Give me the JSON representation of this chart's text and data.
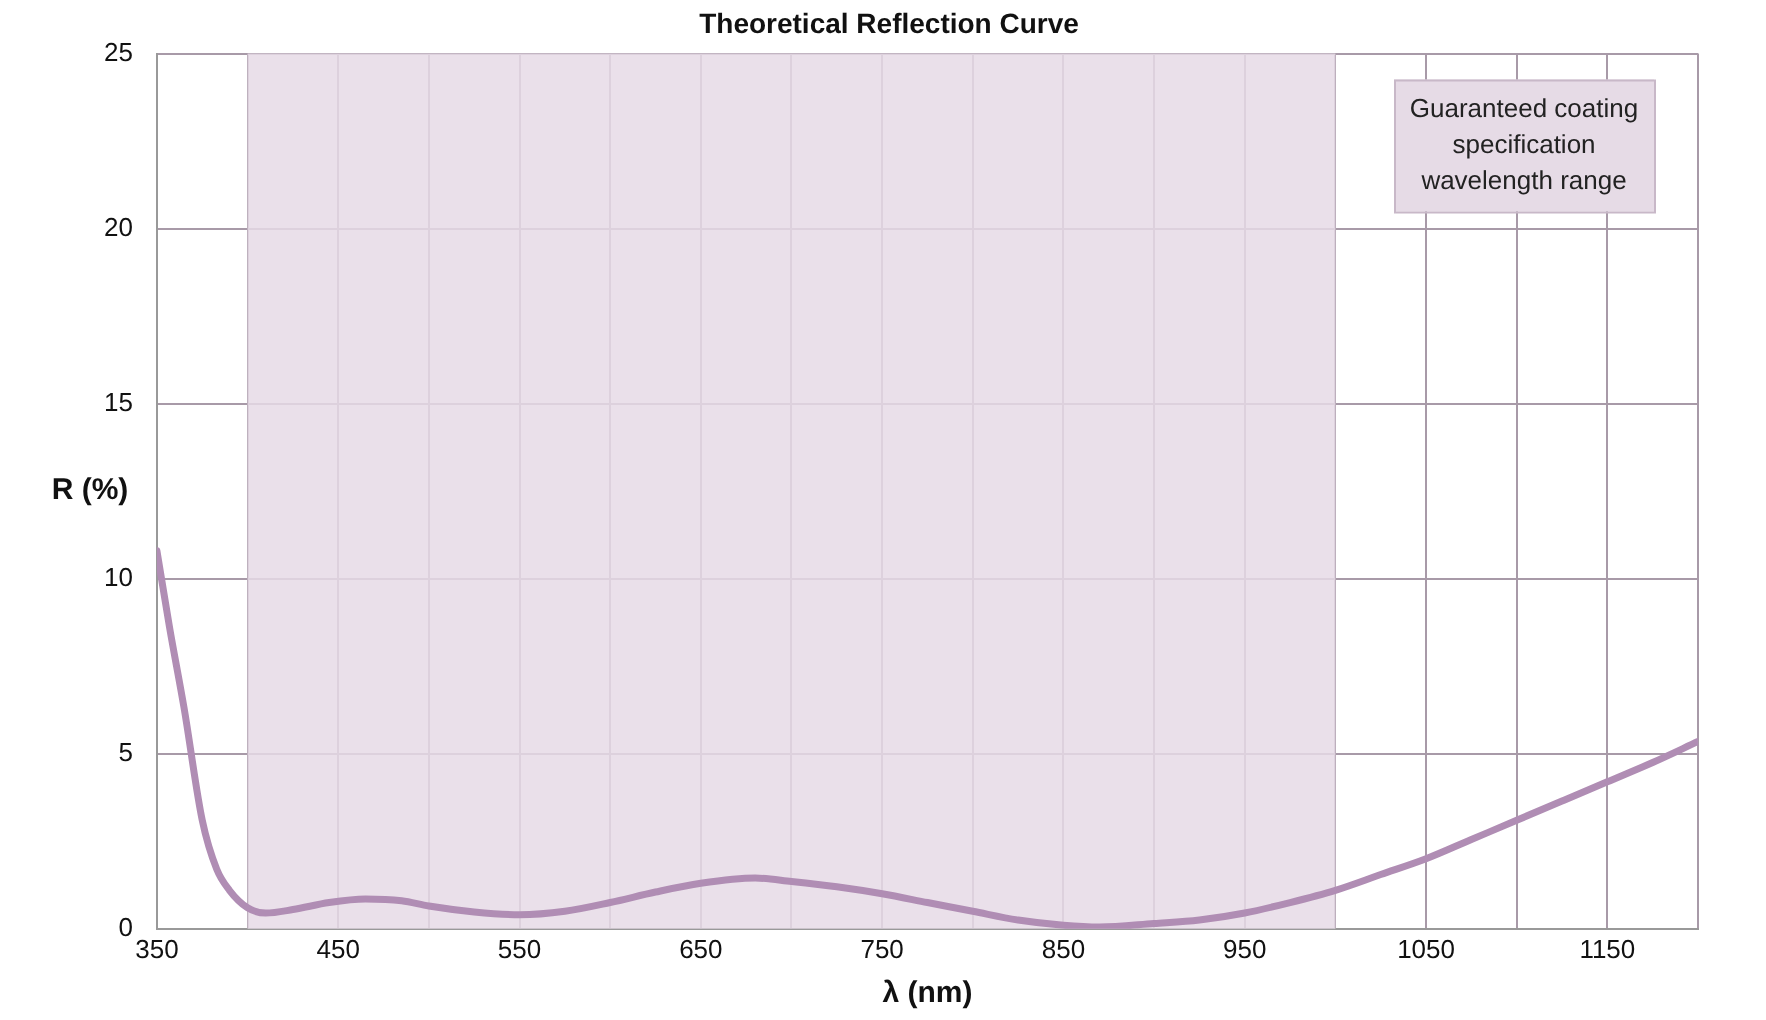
{
  "chart_data": {
    "type": "line",
    "title": "Theoretical Reflection Curve",
    "xlabel": "λ (nm)",
    "ylabel": "R (%)",
    "x": [
      350,
      357,
      365,
      375,
      383,
      390,
      400,
      410,
      425,
      445,
      465,
      485,
      500,
      525,
      550,
      575,
      600,
      625,
      650,
      680,
      700,
      725,
      750,
      775,
      800,
      825,
      850,
      870,
      900,
      925,
      950,
      975,
      1000,
      1025,
      1050,
      1075,
      1100,
      1125,
      1150,
      1175,
      1200
    ],
    "series": [
      {
        "color": "#b08db4",
        "values": [
          10.8,
          8.6,
          6.3,
          3.1,
          1.7,
          1.1,
          0.6,
          0.45,
          0.55,
          0.75,
          0.85,
          0.8,
          0.65,
          0.48,
          0.4,
          0.5,
          0.75,
          1.05,
          1.3,
          1.45,
          1.35,
          1.2,
          1.0,
          0.75,
          0.5,
          0.25,
          0.1,
          0.05,
          0.15,
          0.25,
          0.45,
          0.75,
          1.1,
          1.55,
          2.0,
          2.55,
          3.1,
          3.65,
          4.2,
          4.75,
          5.35
        ]
      }
    ],
    "xlim": [
      350,
      1200
    ],
    "xticks": [
      350,
      {
        "value": 400,
        "label": null
      },
      450,
      {
        "value": 500,
        "label": null
      },
      550,
      {
        "value": 600,
        "label": null
      },
      650,
      {
        "value": 700,
        "label": null
      },
      750,
      {
        "value": 800,
        "label": null
      },
      850,
      {
        "value": 900,
        "label": null
      },
      950,
      {
        "value": 1000,
        "label": null
      },
      1050,
      {
        "value": 1100,
        "label": null
      },
      1150,
      {
        "value": 1200,
        "label": null
      }
    ],
    "ylim": [
      0,
      25
    ],
    "yticks": [
      0,
      5,
      10,
      15,
      20,
      25
    ],
    "grid": true,
    "marker": "none",
    "line_style": "solid",
    "bands": [
      {
        "axis": "x",
        "from": 400,
        "to": 1000,
        "label": "Guaranteed coating specification wavelength range",
        "color": "#e6dbe6"
      }
    ]
  }
}
